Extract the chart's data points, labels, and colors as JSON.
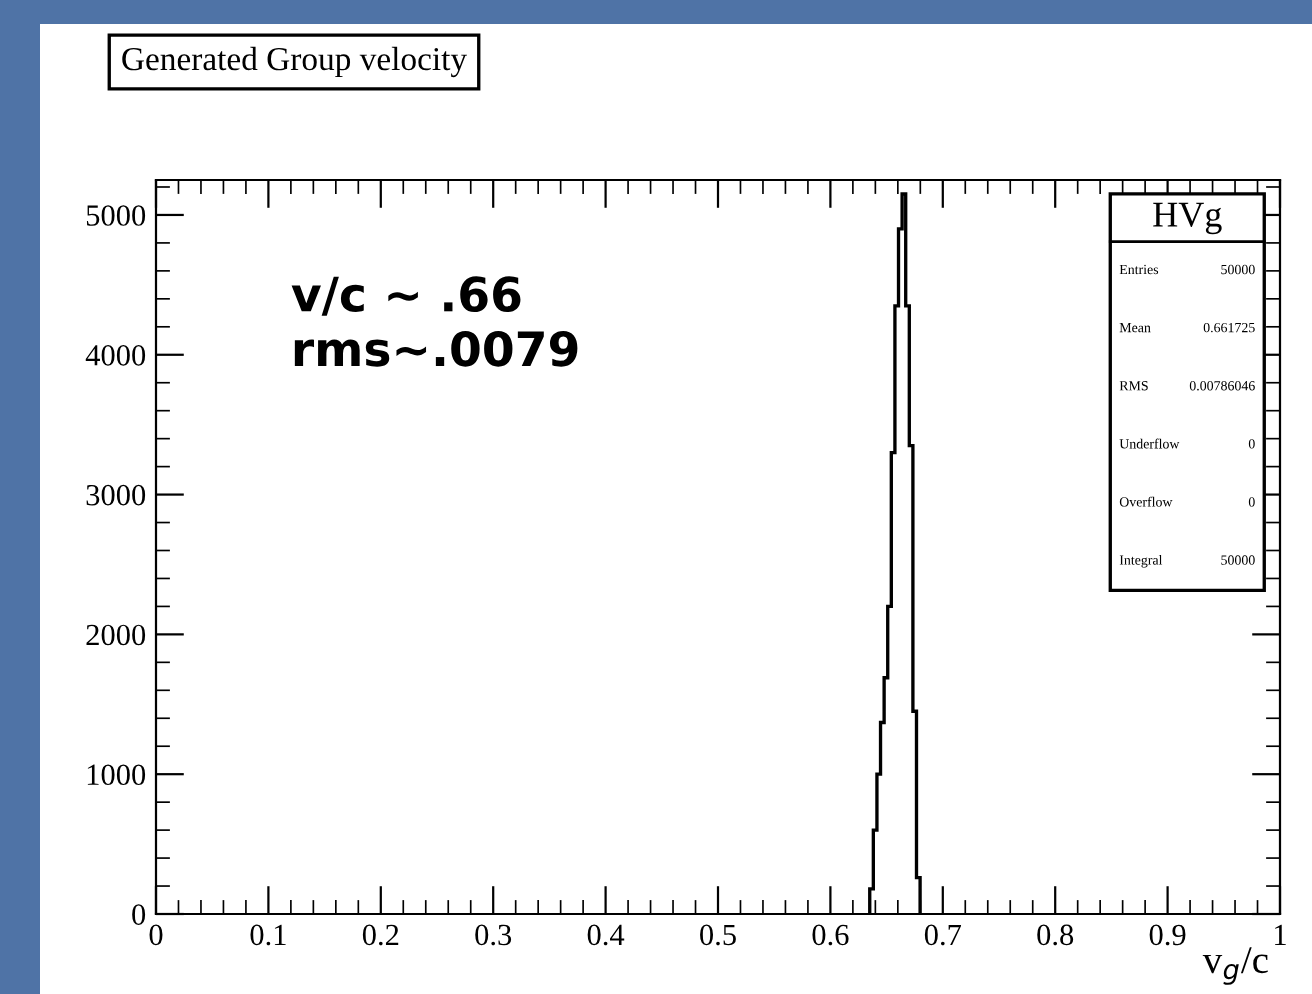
{
  "chart_data": {
    "type": "histogram",
    "title": "Generated Group velocity",
    "xlabel": "v$_{g}$/c",
    "bins": [
      0.635,
      0.6382,
      0.6414,
      0.6446,
      0.6478,
      0.651,
      0.6542,
      0.6574,
      0.6606,
      0.6638,
      0.667,
      0.6702,
      0.6734,
      0.6766,
      0.6798
    ],
    "values": [
      180,
      600,
      1000,
      1370,
      1690,
      2200,
      3300,
      4350,
      4900,
      5150,
      4350,
      3350,
      1450,
      260
    ],
    "color": "#000000",
    "xlim": [
      0,
      1
    ],
    "xticks": [
      0,
      0.1,
      0.2,
      0.3,
      0.4,
      0.5,
      0.6,
      0.7,
      0.8,
      0.9,
      1
    ],
    "ylim": [
      0,
      5250
    ],
    "yticks": [
      0,
      1000,
      2000,
      3000,
      4000,
      5000
    ],
    "grid": false,
    "legend": false,
    "annotations": [
      "v/c ~ .66\nrms~.0079",
      "HVg",
      "Entries\t50000",
      "Mean\t0.661725",
      "RMS\t0.00786046",
      "Underflow\t0",
      "Overflow\t0",
      "Integral\t50000"
    ]
  }
}
